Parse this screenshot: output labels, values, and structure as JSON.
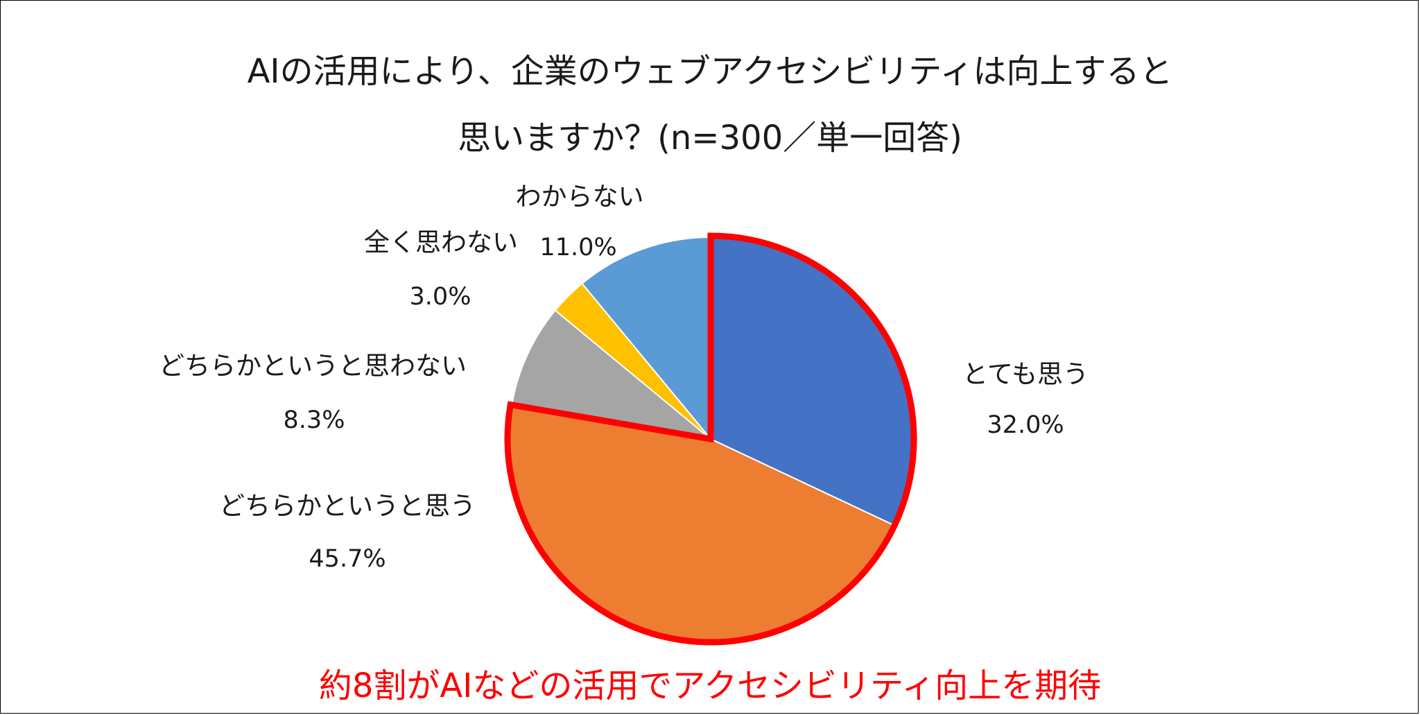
{
  "chart_data": {
    "type": "pie",
    "title": "AIの活用により、企業のウェブアクセシビリティは向上すると",
    "subtitle": "思いますか？(n=300／単一回答)",
    "categories": [
      "とても思う",
      "どちらかというと思う",
      "どちらかというと思わない",
      "全く思わない",
      "わからない"
    ],
    "values": [
      32.0,
      45.7,
      8.3,
      3.0,
      11.0
    ],
    "value_labels": [
      "32.0%",
      "45.7%",
      "8.3%",
      "3.0%",
      "11.0%"
    ],
    "colors": [
      "#4472C4",
      "#ED7D31",
      "#A5A5A5",
      "#FFC000",
      "#5B9BD5"
    ],
    "highlight": {
      "categories": [
        "とても思う",
        "どちらかというと思う"
      ],
      "outline_color": "#FF0000"
    },
    "annotation": "約8割がAIなどの活用でアクセシビリティ向上を期待",
    "legend": "none"
  }
}
